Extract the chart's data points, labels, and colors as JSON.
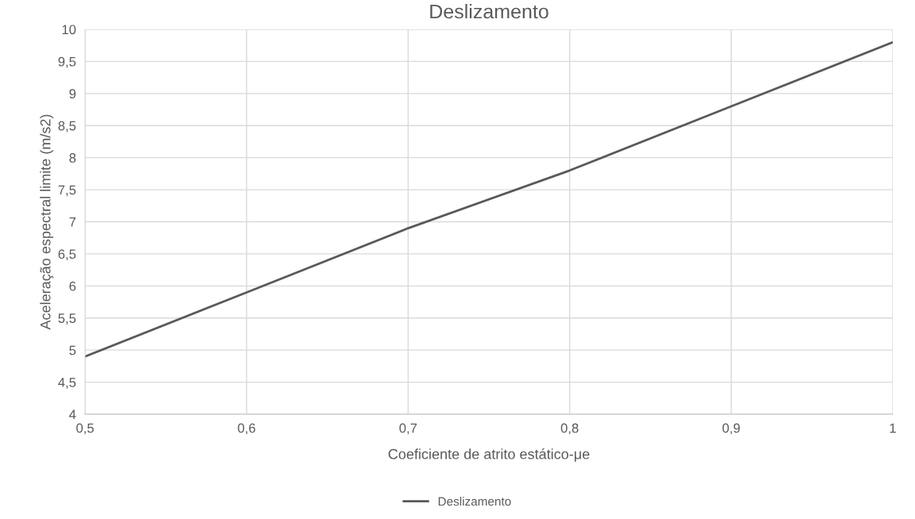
{
  "chart_data": {
    "type": "line",
    "title": "Deslizamento",
    "xlabel": "Coeficiente de atrito estático-μe",
    "ylabel": "Aceleração espectral limite (m/s2)",
    "x": [
      0.5,
      0.6,
      0.7,
      0.8,
      0.9,
      1.0
    ],
    "series": [
      {
        "name": "Deslizamento",
        "color": "#595959",
        "values": [
          4.9,
          5.9,
          6.9,
          7.8,
          8.8,
          9.8
        ]
      }
    ],
    "xlim": [
      0.5,
      1.0
    ],
    "xticks": [
      {
        "value": 0.5,
        "label": "0,5"
      },
      {
        "value": 0.6,
        "label": "0,6"
      },
      {
        "value": 0.7,
        "label": "0,7"
      },
      {
        "value": 0.8,
        "label": "0,8"
      },
      {
        "value": 0.9,
        "label": "0,9"
      },
      {
        "value": 1.0,
        "label": "1"
      }
    ],
    "ylim": [
      4,
      10
    ],
    "yticks": [
      4,
      {
        "value": 4.5,
        "label": "4,5"
      },
      5,
      {
        "value": 5.5,
        "label": "5,5"
      },
      6,
      {
        "value": 6.5,
        "label": "6,5"
      },
      7,
      {
        "value": 7.5,
        "label": "7,5"
      },
      8,
      {
        "value": 8.5,
        "label": "8,5"
      },
      9,
      {
        "value": 9.5,
        "label": "9,5"
      },
      10
    ],
    "grid": true,
    "legend": "bottom",
    "marker": "none",
    "line_style": "solid"
  }
}
